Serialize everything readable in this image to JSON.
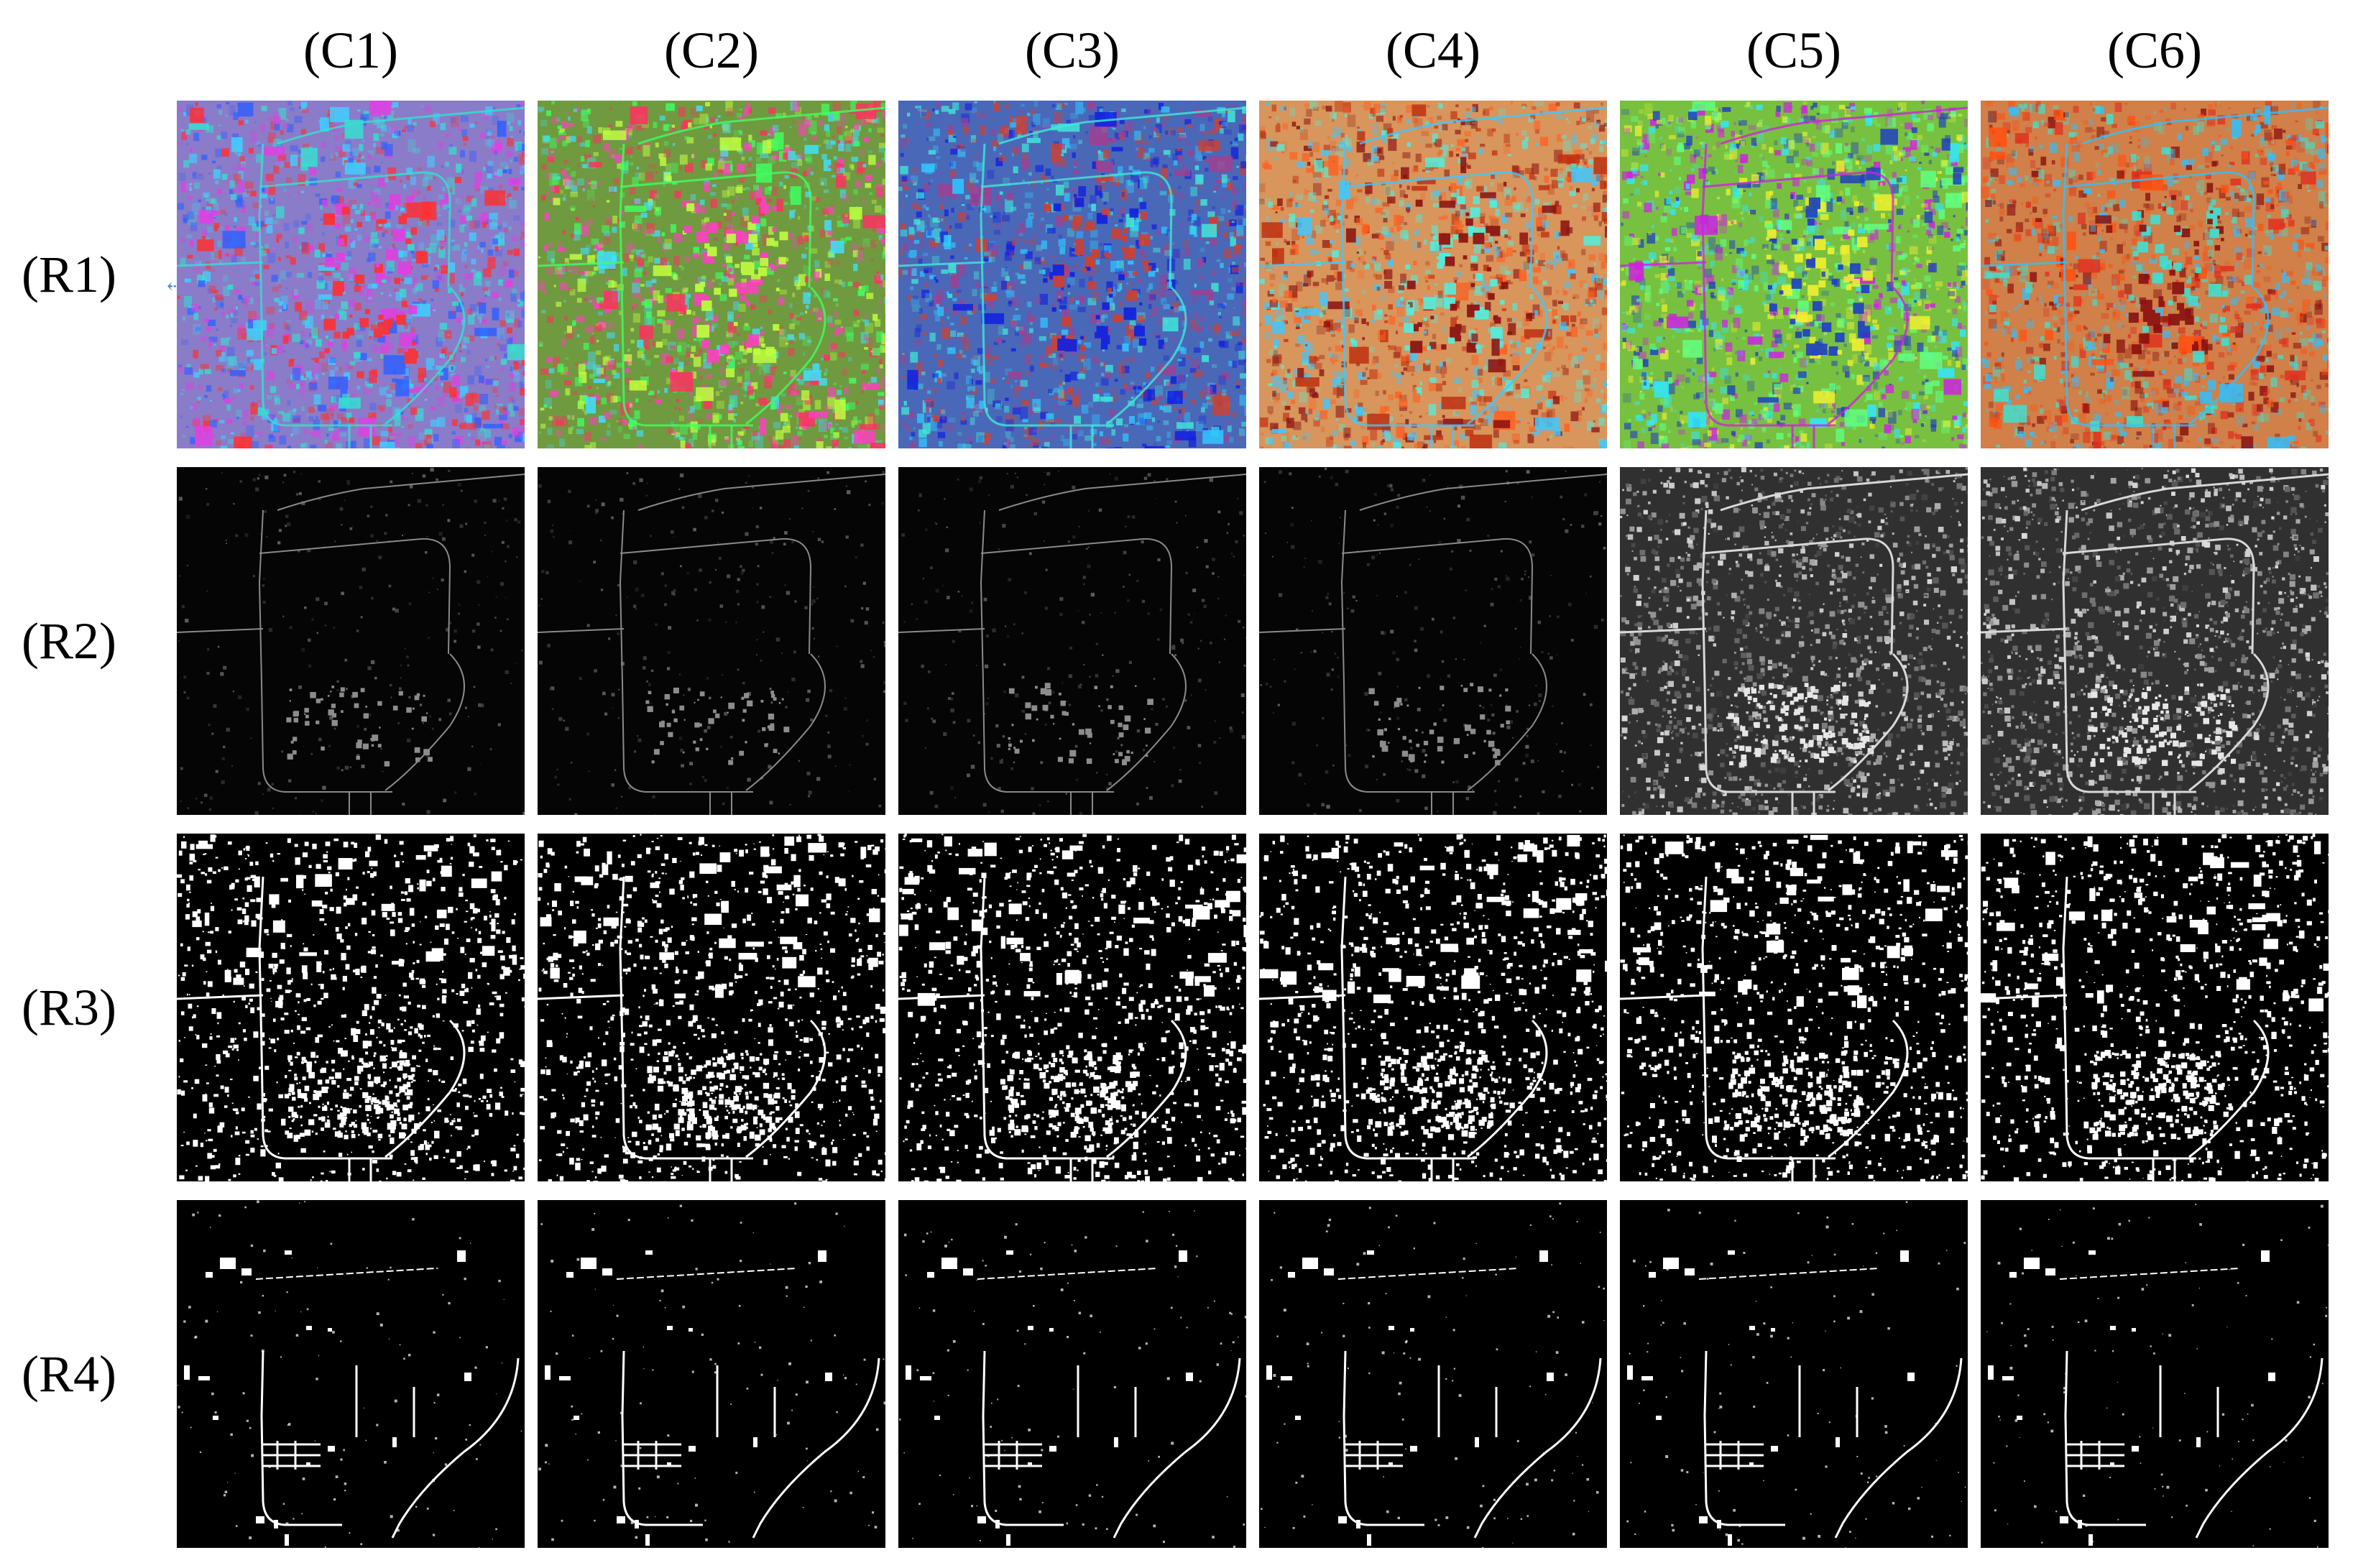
{
  "columns": [
    "(C1)",
    "(C2)",
    "(C3)",
    "(C4)",
    "(C5)",
    "(C6)"
  ],
  "rows": [
    "(R1)",
    "(R2)",
    "(R3)",
    "(R4)"
  ],
  "row_kinds": [
    "false-color",
    "grayscale-map",
    "binary-map",
    "binary-map"
  ],
  "false_color_palettes": [
    {
      "base": "#8a7cc8",
      "accents": [
        "#35e0d0",
        "#ff3030",
        "#40d0ff",
        "#e040e0",
        "#3060ff"
      ]
    },
    {
      "base": "#6f9a40",
      "accents": [
        "#40ff60",
        "#ff40c0",
        "#40e0ff",
        "#c0ff40",
        "#ff3060"
      ]
    },
    {
      "base": "#4a68b8",
      "accents": [
        "#40e8d8",
        "#d04030",
        "#30c8ff",
        "#1020e0",
        "#a04090"
      ]
    },
    {
      "base": "#d8955c",
      "accents": [
        "#40c8ff",
        "#8a1010",
        "#ff6020",
        "#50f0e0",
        "#c03010"
      ]
    },
    {
      "base": "#78c040",
      "accents": [
        "#d020e0",
        "#f0f030",
        "#30e8ff",
        "#2040c0",
        "#60ff80"
      ]
    },
    {
      "base": "#d08048",
      "accents": [
        "#30c0ff",
        "#8a1010",
        "#ff5010",
        "#40e0d0",
        "#e03020"
      ]
    }
  ],
  "colors": {
    "background": "#ffffff",
    "map_background": "#000000",
    "map_foreground": "#ffffff"
  }
}
